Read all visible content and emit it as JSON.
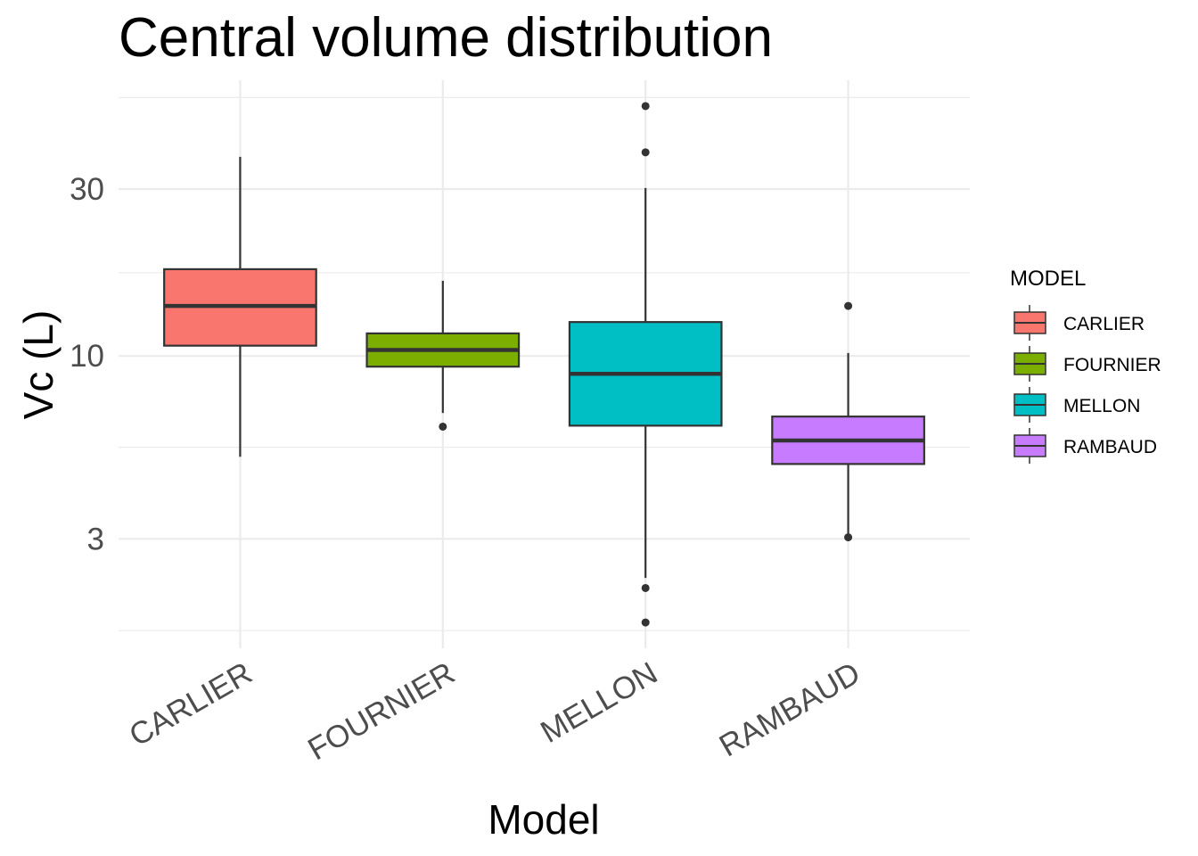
{
  "chart_data": {
    "type": "boxplot",
    "title": "Central volume distribution",
    "xlabel": "Model",
    "ylabel": "Vc (L)",
    "y_scale": "log10",
    "ylim": [
      1.46,
      61.4
    ],
    "y_major_ticks": [
      3,
      10,
      30
    ],
    "y_tick_labels": [
      "3",
      "10",
      "30"
    ],
    "y_minor_ticks": [
      1.64,
      5.48,
      17.3,
      54.8
    ],
    "categories": [
      "CARLIER",
      "FOURNIER",
      "MELLON",
      "RAMBAUD"
    ],
    "x_tick_labels": [
      "CARLIER",
      "FOURNIER",
      "MELLON",
      "RAMBAUD"
    ],
    "x_tick_rotation_deg": 30,
    "grid": true,
    "legend": {
      "title": "MODEL",
      "position": "right",
      "entries": [
        "CARLIER",
        "FOURNIER",
        "MELLON",
        "RAMBAUD"
      ]
    },
    "colors": {
      "CARLIER": "#F8766D",
      "FOURNIER": "#7CAE00",
      "MELLON": "#00BFC4",
      "RAMBAUD": "#C77CFF",
      "outline": "#333333",
      "grid": "#ebebeb"
    },
    "series": [
      {
        "name": "CARLIER",
        "whisker_low": 5.15,
        "q1": 10.7,
        "median": 13.9,
        "q3": 17.7,
        "whisker_high": 37.1,
        "outliers": []
      },
      {
        "name": "FOURNIER",
        "whisker_low": 6.87,
        "q1": 9.32,
        "median": 10.4,
        "q3": 11.6,
        "whisker_high": 16.4,
        "outliers": [
          6.28
        ]
      },
      {
        "name": "MELLON",
        "whisker_low": 2.32,
        "q1": 6.32,
        "median": 8.89,
        "q3": 12.5,
        "whisker_high": 30.2,
        "outliers": [
          51.8,
          38.2,
          2.17,
          1.73
        ]
      },
      {
        "name": "RAMBAUD",
        "whisker_low": 3.03,
        "q1": 4.91,
        "median": 5.73,
        "q3": 6.71,
        "whisker_high": 10.2,
        "outliers": [
          13.9,
          3.03
        ]
      }
    ]
  }
}
